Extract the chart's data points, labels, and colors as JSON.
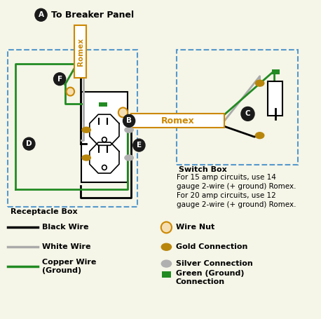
{
  "bg_color": "#f5f5e8",
  "title": "To Breaker Panel",
  "romex_color": "#cc8800",
  "black_wire_color": "#000000",
  "white_wire_color": "#aaaaaa",
  "green_wire_color": "#228B22",
  "gold_color": "#b8860b",
  "silver_color": "#b0b0b0",
  "wire_nut_fill": "#f5deb3",
  "wire_nut_edge": "#cc8800",
  "green_conn_color": "#228B22",
  "box_edge_color": "#5599cc",
  "receptacle_box_label": "Receptacle Box",
  "switch_box_label": "Switch Box",
  "note_text": "For 15 amp circuits, use 14\ngauge 2-wire (+ ground) Romex.\nFor 20 amp circuits, use 12\ngauge 2-wire (+ ground) Romex.",
  "label_color": "#1a1a1a",
  "label_text_color": "#ffffff"
}
